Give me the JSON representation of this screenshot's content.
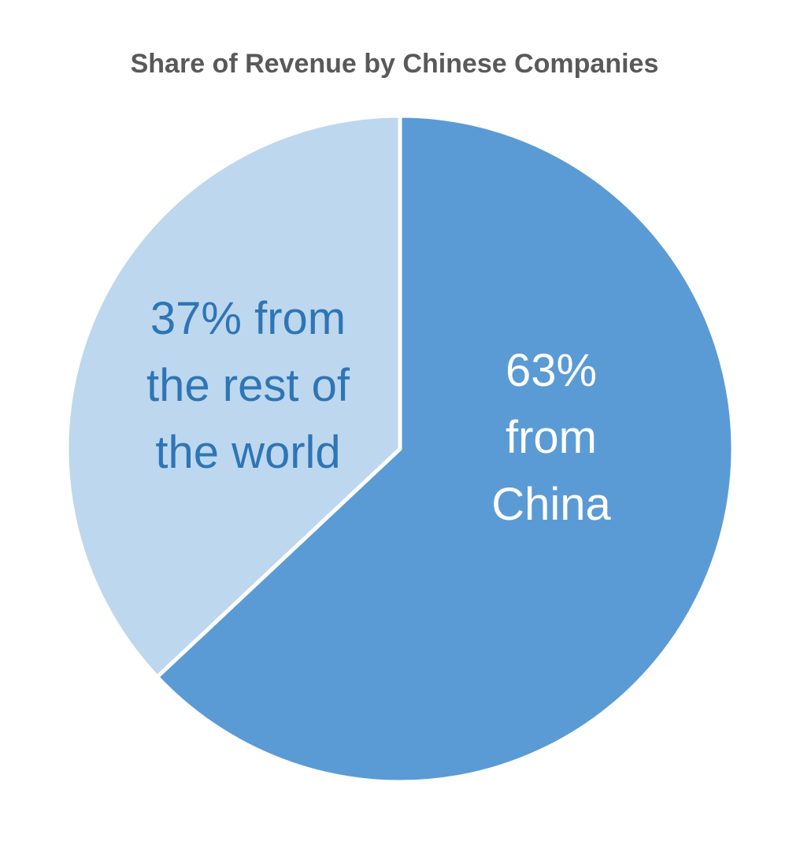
{
  "chart_data": {
    "type": "pie",
    "title": "Share of Revenue by Chinese Companies",
    "title_color": "#595959",
    "background": "#FFFFFF",
    "legend": "none",
    "start_angle_deg": 0,
    "direction": "clockwise",
    "separator_color": "#FFFFFF",
    "slices": [
      {
        "name": "from China",
        "value": 63,
        "unit": "%",
        "color": "#5B9BD5",
        "display_label": "63%\nfrom\nChina",
        "label_color": "#FFFFFF"
      },
      {
        "name": "from the rest of the world",
        "value": 37,
        "unit": "%",
        "color": "#BDD7EE",
        "display_label": "37% from\nthe rest of\nthe world",
        "label_color": "#2E75B6"
      }
    ]
  }
}
